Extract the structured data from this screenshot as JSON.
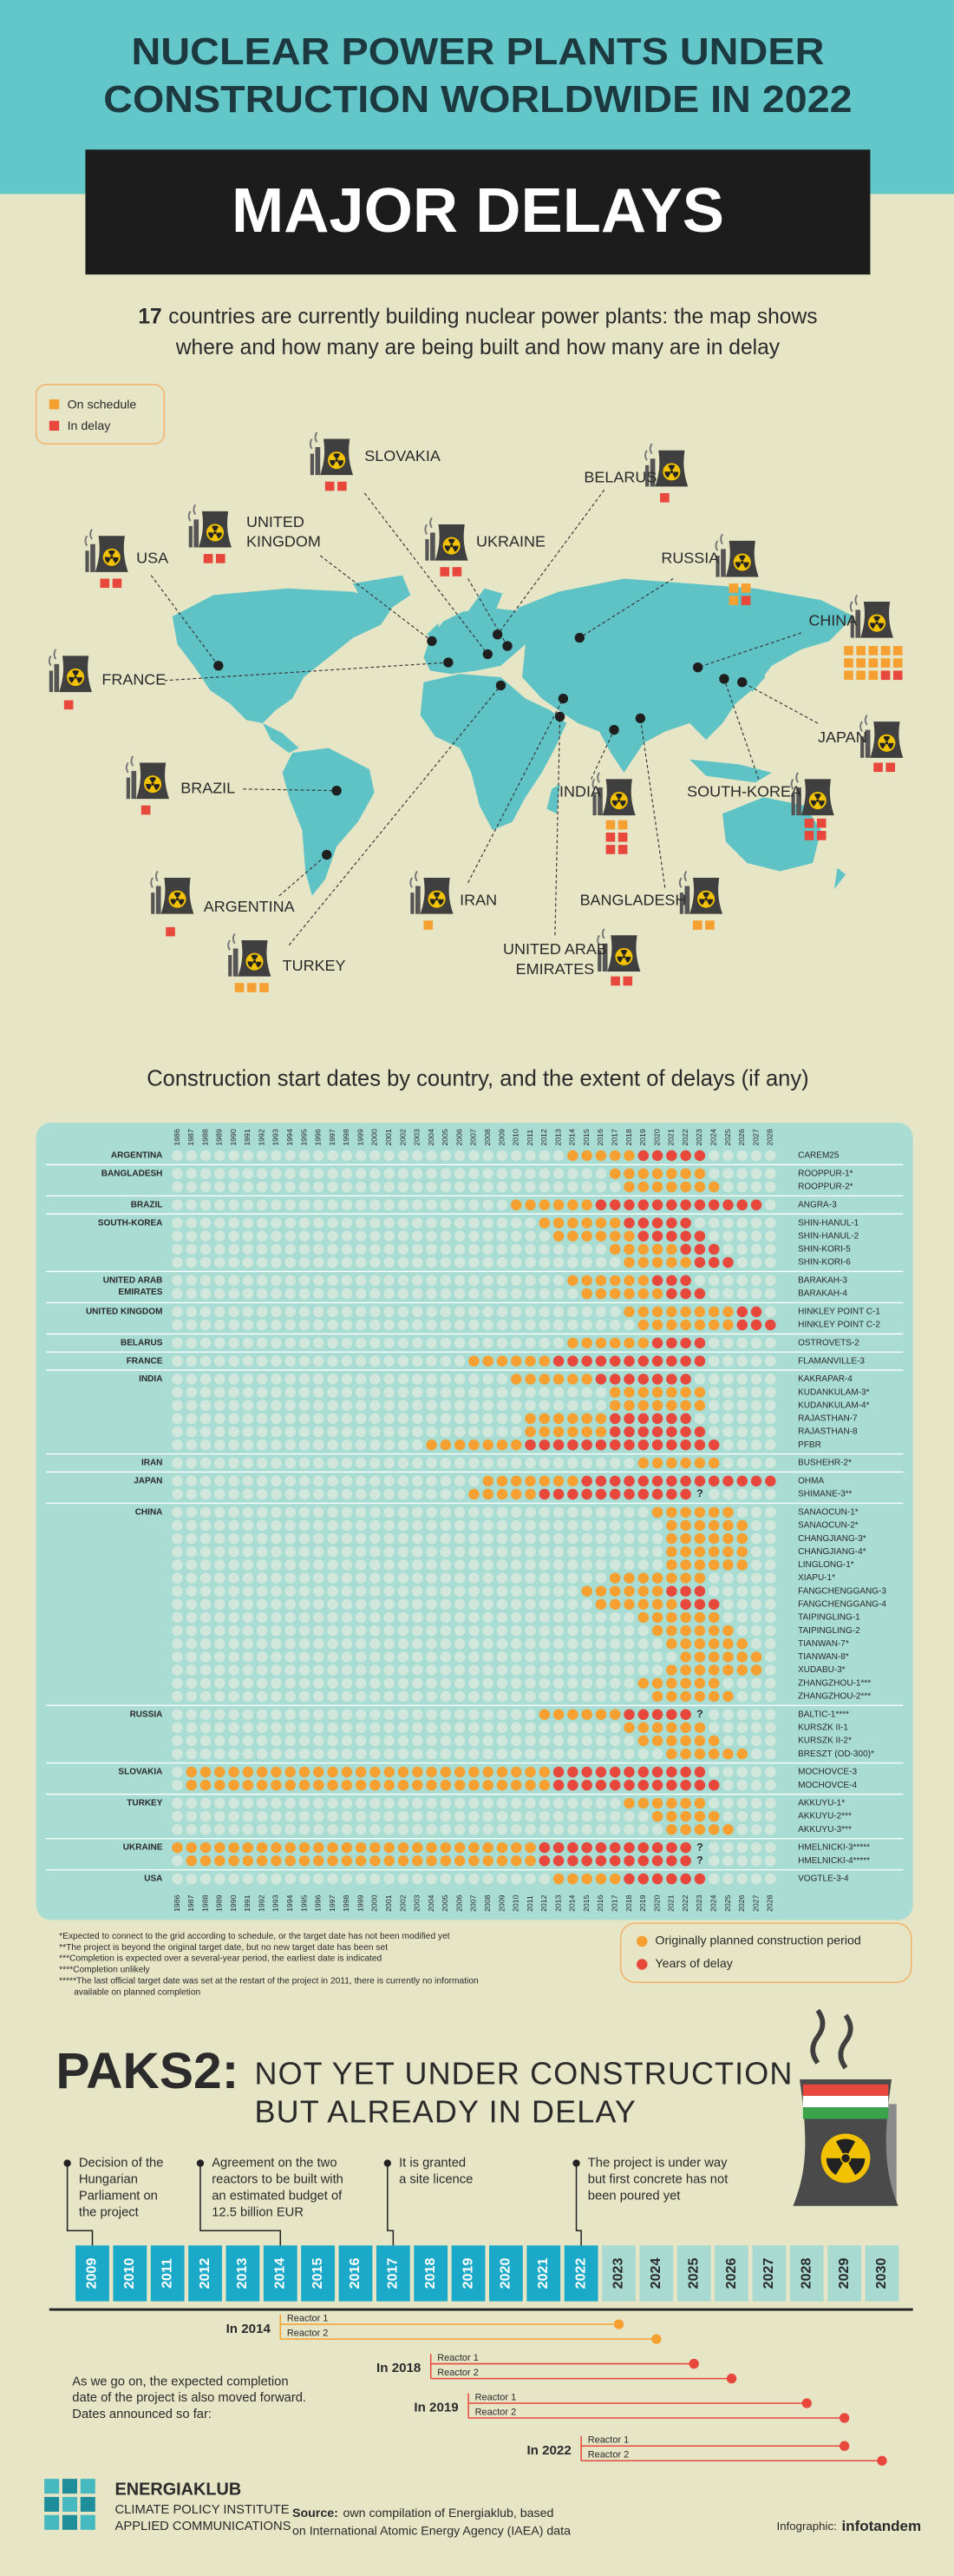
{
  "header": {
    "title_lines": [
      "NUCLEAR POWER PLANTS UNDER",
      "CONSTRUCTION WORLDWIDE IN 2022"
    ],
    "banner": "MAJOR DELAYS",
    "subtitle_highlight": "17",
    "subtitle_lines": [
      "countries are currently building nuclear power plants: the map shows",
      "where and how many are being built and how many are in delay"
    ]
  },
  "map": {
    "legend": [
      {
        "label": "On schedule",
        "color": "#f5a031"
      },
      {
        "label": "In delay",
        "color": "#e8473b"
      }
    ],
    "countries": [
      {
        "name_lines": [
          "USA"
        ],
        "on_schedule": 0,
        "in_delay": 2
      },
      {
        "name_lines": [
          "UNITED",
          "KINGDOM"
        ],
        "on_schedule": 0,
        "in_delay": 2
      },
      {
        "name_lines": [
          "SLOVAKIA"
        ],
        "on_schedule": 0,
        "in_delay": 2
      },
      {
        "name_lines": [
          "UKRAINE"
        ],
        "on_schedule": 0,
        "in_delay": 2
      },
      {
        "name_lines": [
          "BELARUS"
        ],
        "on_schedule": 0,
        "in_delay": 1
      },
      {
        "name_lines": [
          "RUSSIA"
        ],
        "on_schedule": 3,
        "in_delay": 1
      },
      {
        "name_lines": [
          "CHINA"
        ],
        "on_schedule": 13,
        "in_delay": 2
      },
      {
        "name_lines": [
          "JAPAN"
        ],
        "on_schedule": 0,
        "in_delay": 2
      },
      {
        "name_lines": [
          "SOUTH-KOREA"
        ],
        "on_schedule": 0,
        "in_delay": 4
      },
      {
        "name_lines": [
          "INDIA"
        ],
        "on_schedule": 2,
        "in_delay": 4
      },
      {
        "name_lines": [
          "BANGLADESH"
        ],
        "on_schedule": 2,
        "in_delay": 0
      },
      {
        "name_lines": [
          "UNITED ARAB",
          "EMIRATES"
        ],
        "on_schedule": 0,
        "in_delay": 2
      },
      {
        "name_lines": [
          "IRAN"
        ],
        "on_schedule": 1,
        "in_delay": 0
      },
      {
        "name_lines": [
          "TURKEY"
        ],
        "on_schedule": 3,
        "in_delay": 0
      },
      {
        "name_lines": [
          "ARGENTINA"
        ],
        "on_schedule": 0,
        "in_delay": 1
      },
      {
        "name_lines": [
          "BRAZIL"
        ],
        "on_schedule": 0,
        "in_delay": 1
      },
      {
        "name_lines": [
          "FRANCE"
        ],
        "on_schedule": 0,
        "in_delay": 1
      }
    ]
  },
  "grid": {
    "title": "Construction start dates by country, and the extent of delays (if any)",
    "years": [
      1986,
      1987,
      1988,
      1989,
      1990,
      1991,
      1992,
      1993,
      1994,
      1995,
      1996,
      1997,
      1998,
      1999,
      2000,
      2001,
      2002,
      2003,
      2004,
      2005,
      2006,
      2007,
      2008,
      2009,
      2010,
      2011,
      2012,
      2013,
      2014,
      2015,
      2016,
      2017,
      2018,
      2019,
      2020,
      2021,
      2022,
      2023,
      2024,
      2025,
      2026,
      2027,
      2028
    ],
    "uncertain_label": "?",
    "planned_color": "#f5a031",
    "delay_color": "#e8473b",
    "groups": [
      {
        "country_lines": [
          "ARGENTINA"
        ],
        "reactors": [
          {
            "name": "CAREM25",
            "start": 2014,
            "planned_end": 2018,
            "delay_end": 2023
          }
        ]
      },
      {
        "country_lines": [
          "BANGLADESH"
        ],
        "reactors": [
          {
            "name": "ROOPPUR-1*",
            "start": 2017,
            "planned_end": 2023
          },
          {
            "name": "ROOPPUR-2*",
            "start": 2018,
            "planned_end": 2024
          }
        ]
      },
      {
        "country_lines": [
          "BRAZIL"
        ],
        "reactors": [
          {
            "name": "ANGRA-3",
            "start": 2010,
            "planned_end": 2015,
            "delay_end": 2027
          }
        ]
      },
      {
        "country_lines": [
          "SOUTH-KOREA"
        ],
        "reactors": [
          {
            "name": "SHIN-HANUL-1",
            "start": 2012,
            "planned_end": 2017,
            "delay_end": 2022
          },
          {
            "name": "SHIN-HANUL-2",
            "start": 2013,
            "planned_end": 2018,
            "delay_end": 2023
          },
          {
            "name": "SHIN-KORI-5",
            "start": 2017,
            "planned_end": 2021,
            "delay_end": 2024
          },
          {
            "name": "SHIN-KORI-6",
            "start": 2018,
            "planned_end": 2022,
            "delay_end": 2025
          }
        ]
      },
      {
        "country_lines": [
          "UNITED ARAB",
          "EMIRATES"
        ],
        "reactors": [
          {
            "name": "BARAKAH-3",
            "start": 2014,
            "planned_end": 2019,
            "delay_end": 2022
          },
          {
            "name": "BARAKAH-4",
            "start": 2015,
            "planned_end": 2020,
            "delay_end": 2023
          }
        ]
      },
      {
        "country_lines": [
          "UNITED KINGDOM"
        ],
        "reactors": [
          {
            "name": "HINKLEY POINT C-1",
            "start": 2018,
            "planned_end": 2025,
            "delay_end": 2027
          },
          {
            "name": "HINKLEY POINT C-2",
            "start": 2019,
            "planned_end": 2025,
            "delay_end": 2028
          }
        ]
      },
      {
        "country_lines": [
          "BELARUS"
        ],
        "reactors": [
          {
            "name": "OSTROVETS-2",
            "start": 2014,
            "planned_end": 2019,
            "delay_end": 2023
          }
        ]
      },
      {
        "country_lines": [
          "FRANCE"
        ],
        "reactors": [
          {
            "name": "FLAMANVILLE-3",
            "start": 2007,
            "planned_end": 2012,
            "delay_end": 2023
          }
        ]
      },
      {
        "country_lines": [
          "INDIA"
        ],
        "reactors": [
          {
            "name": "KAKRAPAR-4",
            "start": 2010,
            "planned_end": 2015,
            "delay_end": 2022
          },
          {
            "name": "KUDANKULAM-3*",
            "start": 2017,
            "planned_end": 2023
          },
          {
            "name": "KUDANKULAM-4*",
            "start": 2017,
            "planned_end": 2023
          },
          {
            "name": "RAJASTHAN-7",
            "start": 2011,
            "planned_end": 2016,
            "delay_end": 2022
          },
          {
            "name": "RAJASTHAN-8",
            "start": 2011,
            "planned_end": 2016,
            "delay_end": 2023
          },
          {
            "name": "PFBR",
            "start": 2004,
            "planned_end": 2010,
            "delay_end": 2024
          }
        ]
      },
      {
        "country_lines": [
          "IRAN"
        ],
        "reactors": [
          {
            "name": "BUSHEHR-2*",
            "start": 2019,
            "planned_end": 2024
          }
        ]
      },
      {
        "country_lines": [
          "JAPAN"
        ],
        "reactors": [
          {
            "name": "OHMA",
            "start": 2008,
            "planned_end": 2014,
            "delay_end": 2028
          },
          {
            "name": "SHIMANE-3**",
            "start": 2007,
            "planned_end": 2011,
            "delay_end": 2022,
            "uncertain_year": 2023
          }
        ]
      },
      {
        "country_lines": [
          "CHINA"
        ],
        "reactors": [
          {
            "name": "SANAOCUN-1*",
            "start": 2020,
            "planned_end": 2025
          },
          {
            "name": "SANAOCUN-2*",
            "start": 2021,
            "planned_end": 2026
          },
          {
            "name": "CHANGJIANG-3*",
            "start": 2021,
            "planned_end": 2026
          },
          {
            "name": "CHANGJIANG-4*",
            "start": 2021,
            "planned_end": 2026
          },
          {
            "name": "LINGLONG-1*",
            "start": 2021,
            "planned_end": 2026
          },
          {
            "name": "XIAPU-1*",
            "start": 2017,
            "planned_end": 2023
          },
          {
            "name": "FANGCHENGGANG-3",
            "start": 2015,
            "planned_end": 2020,
            "delay_end": 2023
          },
          {
            "name": "FANGCHENGGANG-4",
            "start": 2016,
            "planned_end": 2021,
            "delay_end": 2024
          },
          {
            "name": "TAIPINGLING-1",
            "start": 2019,
            "planned_end": 2024
          },
          {
            "name": "TAIPINGLING-2",
            "start": 2020,
            "planned_end": 2025
          },
          {
            "name": "TIANWAN-7*",
            "start": 2021,
            "planned_end": 2026
          },
          {
            "name": "TIANWAN-8*",
            "start": 2022,
            "planned_end": 2027
          },
          {
            "name": "XUDABU-3*",
            "start": 2021,
            "planned_end": 2027
          },
          {
            "name": "ZHANGZHOU-1***",
            "start": 2019,
            "planned_end": 2024
          },
          {
            "name": "ZHANGZHOU-2***",
            "start": 2020,
            "planned_end": 2025
          }
        ]
      },
      {
        "country_lines": [
          "RUSSIA"
        ],
        "reactors": [
          {
            "name": "BALTIC-1****",
            "start": 2012,
            "planned_end": 2017,
            "delay_end": 2022,
            "uncertain_year": 2023
          },
          {
            "name": "KURSZK II-1",
            "start": 2018,
            "planned_end": 2023
          },
          {
            "name": "KURSZK II-2*",
            "start": 2019,
            "planned_end": 2024
          },
          {
            "name": "BRESZT (OD-300)*",
            "start": 2021,
            "planned_end": 2026
          }
        ]
      },
      {
        "country_lines": [
          "SLOVAKIA"
        ],
        "reactors": [
          {
            "name": "MOCHOVCE-3",
            "start": 1987,
            "planned_end": 2012,
            "delay_end": 2023
          },
          {
            "name": "MOCHOVCE-4",
            "start": 1987,
            "planned_end": 2012,
            "delay_end": 2024
          }
        ]
      },
      {
        "country_lines": [
          "TURKEY"
        ],
        "reactors": [
          {
            "name": "AKKUYU-1*",
            "start": 2018,
            "planned_end": 2023
          },
          {
            "name": "AKKUYU-2***",
            "start": 2020,
            "planned_end": 2024
          },
          {
            "name": "AKKUYU-3***",
            "start": 2021,
            "planned_end": 2025
          }
        ]
      },
      {
        "country_lines": [
          "UKRAINE"
        ],
        "reactors": [
          {
            "name": "HMELNICKI-3*****",
            "start": 1986,
            "planned_end": 2011,
            "delay_end": 2022,
            "uncertain_year": 2023
          },
          {
            "name": "HMELNICKI-4*****",
            "start": 1987,
            "planned_end": 2011,
            "delay_end": 2022,
            "uncertain_year": 2023
          }
        ]
      },
      {
        "country_lines": [
          "USA"
        ],
        "reactors": [
          {
            "name": "VOGTLE-3-4",
            "start": 2013,
            "planned_end": 2017,
            "delay_end": 2023
          }
        ]
      }
    ],
    "footnotes": [
      [
        "*Expected to connect to the grid according to schedule, or the target date has not been modified yet"
      ],
      [
        "**The project is beyond the original target date, but no new target date has been set"
      ],
      [
        "***Completion is expected over a several-year period, the earliest date is indicated"
      ],
      [
        "****Completion unlikely"
      ],
      [
        "*****The last official target date was set at the restart of the project in 2011, there is currently no information",
        "available on planned completion"
      ]
    ],
    "legend": [
      "Originally planned construction period",
      "Years of delay"
    ]
  },
  "paks2": {
    "title": "PAKS2:",
    "subtitle_lines": [
      "NOT YET UNDER CONSTRUCTION",
      "BUT ALREADY IN DELAY"
    ],
    "timeline_years": [
      2009,
      2010,
      2011,
      2012,
      2013,
      2014,
      2015,
      2016,
      2017,
      2018,
      2019,
      2020,
      2021,
      2022,
      2023,
      2024,
      2025,
      2026,
      2027,
      2028,
      2029,
      2030
    ],
    "current_year": 2022,
    "past_color": "#1aa9c8",
    "future_color": "#a8dad2",
    "events": [
      {
        "year": 2009,
        "lines": [
          "Decision of the",
          "Hungarian",
          "Parliament on",
          "the project"
        ]
      },
      {
        "year": 2014,
        "lines": [
          "Agreement on the two",
          "reactors to be built with",
          "an estimated budget of",
          "12.5 billion EUR"
        ]
      },
      {
        "year": 2017,
        "lines": [
          "It is granted",
          "a site licence"
        ]
      },
      {
        "year": 2022,
        "lines": [
          "The project is under way",
          "but first concrete has not",
          "been poured yet"
        ]
      }
    ],
    "explanation_lines": [
      "As we go on, the expected completion",
      "date of the project is also moved forward.",
      "Dates announced so far:"
    ],
    "announcements": [
      {
        "label": "In 2014",
        "year": 2014,
        "color": "#f5a031",
        "reactors": [
          {
            "name": "Reactor 1",
            "completion": 2023
          },
          {
            "name": "Reactor 2",
            "completion": 2024
          }
        ]
      },
      {
        "label": "In 2018",
        "year": 2018,
        "color": "#e8473b",
        "reactors": [
          {
            "name": "Reactor 1",
            "completion": 2025
          },
          {
            "name": "Reactor 2",
            "completion": 2026
          }
        ]
      },
      {
        "label": "In 2019",
        "year": 2019,
        "color": "#e8473b",
        "reactors": [
          {
            "name": "Reactor 1",
            "completion": 2028
          },
          {
            "name": "Reactor 2",
            "completion": 2029
          }
        ]
      },
      {
        "label": "In 2022",
        "year": 2022,
        "color": "#e8473b",
        "reactors": [
          {
            "name": "Reactor 1",
            "completion": 2029
          },
          {
            "name": "Reactor 2",
            "completion": 2030
          }
        ]
      }
    ]
  },
  "footer": {
    "org": "ENERGIAKLUB",
    "org_lines": [
      "CLIMATE POLICY INSTITUTE",
      "APPLIED COMMUNICATIONS"
    ],
    "source_label": "Source:",
    "source_lines": [
      "own compilation of Energiaklub, based",
      "on International Atomic Energy Agency (IAEA) data"
    ],
    "credit_label": "Infographic:",
    "credit": "infotandem"
  }
}
